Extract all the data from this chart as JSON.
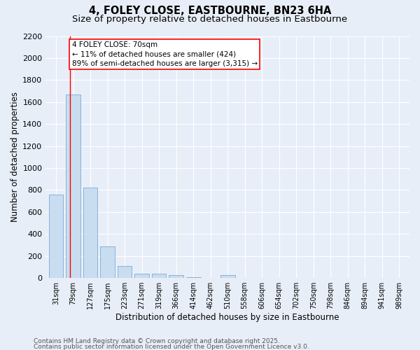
{
  "title_line1": "4, FOLEY CLOSE, EASTBOURNE, BN23 6HA",
  "title_line2": "Size of property relative to detached houses in Eastbourne",
  "xlabel": "Distribution of detached houses by size in Eastbourne",
  "ylabel": "Number of detached properties",
  "categories": [
    "31sqm",
    "79sqm",
    "127sqm",
    "175sqm",
    "223sqm",
    "271sqm",
    "319sqm",
    "366sqm",
    "414sqm",
    "462sqm",
    "510sqm",
    "558sqm",
    "606sqm",
    "654sqm",
    "702sqm",
    "750sqm",
    "798sqm",
    "846sqm",
    "894sqm",
    "941sqm",
    "989sqm"
  ],
  "values": [
    760,
    1670,
    820,
    290,
    110,
    40,
    40,
    25,
    10,
    0,
    25,
    0,
    0,
    0,
    0,
    0,
    0,
    0,
    0,
    0,
    0
  ],
  "bar_color": "#c9ddf0",
  "bar_edge_color": "#7baad4",
  "annotation_box_text": "4 FOLEY CLOSE: 70sqm\n← 11% of detached houses are smaller (424)\n89% of semi-detached houses are larger (3,315) →",
  "ylim": [
    0,
    2200
  ],
  "yticks": [
    0,
    200,
    400,
    600,
    800,
    1000,
    1200,
    1400,
    1600,
    1800,
    2000,
    2200
  ],
  "footer_line1": "Contains HM Land Registry data © Crown copyright and database right 2025.",
  "footer_line2": "Contains public sector information licensed under the Open Government Licence v3.0.",
  "bg_color": "#e8eef8",
  "plot_bg_color": "#e8eef8",
  "grid_color": "#ffffff",
  "title_fontsize": 10.5,
  "subtitle_fontsize": 9.5,
  "axis_label_fontsize": 8.5,
  "tick_fontsize": 8,
  "footer_fontsize": 6.5,
  "annot_fontsize": 7.5
}
